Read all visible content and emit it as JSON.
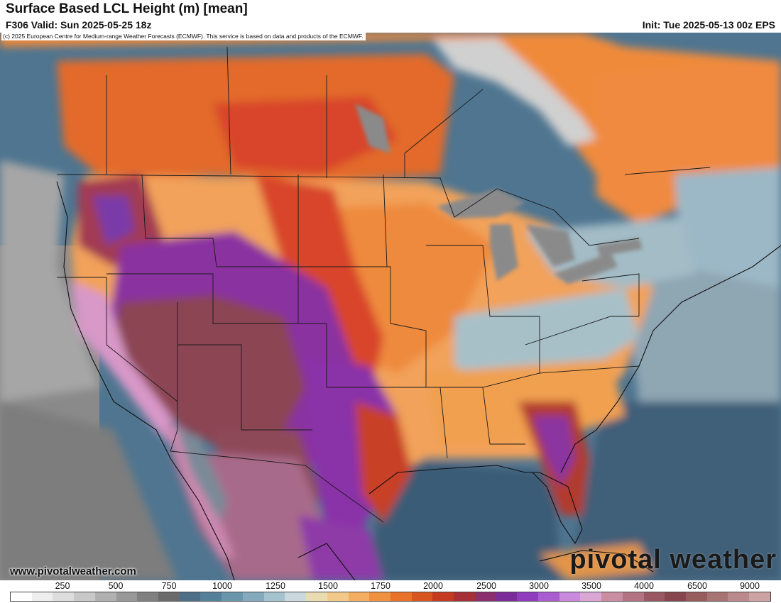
{
  "header": {
    "title": "Surface Based LCL Height (m) [mean]",
    "valid": "F306 Valid: Sun 2025-05-25 18z",
    "init": "Init: Tue 2025-05-13 00z EPS"
  },
  "copyright": "(c) 2025 European Centre for Medium-range Weather Forecasts (ECMWF). This service is based on data and products of the ECMWF.",
  "footer": {
    "site": "www.pivotalweather.com",
    "logo": "pivotal weather"
  },
  "colorbar": {
    "labels": [
      "250",
      "500",
      "750",
      "1000",
      "1250",
      "1500",
      "1750",
      "2000",
      "2500",
      "3000",
      "3500",
      "4000",
      "6500",
      "9000"
    ],
    "colors": [
      "#ffffff",
      "#eeeeee",
      "#dddddd",
      "#c8c8c8",
      "#b0b0b0",
      "#989898",
      "#808080",
      "#6a6a6a",
      "#4e6f88",
      "#55809a",
      "#6b95ab",
      "#86aabd",
      "#a5c2cf",
      "#c9d9de",
      "#e8dcb0",
      "#f3c98a",
      "#f3ae62",
      "#f0913f",
      "#e87228",
      "#d9551f",
      "#c43b22",
      "#a72f38",
      "#8c2f6e",
      "#7a2d98",
      "#8f3cbf",
      "#a95dd0",
      "#c989dc",
      "#d9a6d6",
      "#c98ea2",
      "#b37383",
      "#9a5864",
      "#87454e",
      "#975c5c",
      "#a87373",
      "#ba8a8a",
      "#cca2a2"
    ]
  },
  "map": {
    "colors": {
      "ocean_deep": "#3f5e78",
      "ocean": "#557d98",
      "land_low": "#9ab8c4",
      "orange": "#f09040",
      "light_orange": "#f4b870",
      "red": "#d8502a",
      "purple": "#8a3aa8",
      "maroon": "#8e4a55",
      "pink": "#c994b2",
      "gray_land": "#7f7f7f",
      "ice": "#d6d6d6"
    }
  }
}
